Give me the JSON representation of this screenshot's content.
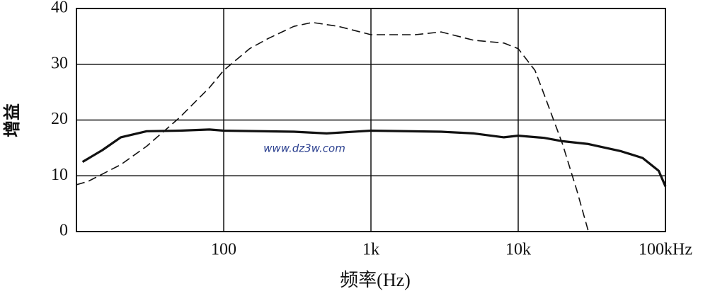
{
  "chart_data": {
    "type": "line",
    "x_label": "频率(Hz)",
    "y_label": "增益",
    "annotations": [
      "www.dz3w.com"
    ],
    "xscale": "log",
    "grid": true,
    "xlim": [
      10,
      100000
    ],
    "ylim": [
      0,
      40
    ],
    "xticks": [
      {
        "value": 100,
        "label": "100"
      },
      {
        "value": 1000,
        "label": "1k"
      },
      {
        "value": 10000,
        "label": "10k"
      },
      {
        "value": 100000,
        "label": "100kHz"
      }
    ],
    "yticks": [
      0,
      10,
      20,
      30,
      40
    ],
    "series": [
      {
        "color": "#111111",
        "line_style": "solid",
        "x": [
          11,
          15,
          20,
          30,
          50,
          80,
          100,
          300,
          500,
          1000,
          3000,
          5000,
          8000,
          10000,
          15000,
          20000,
          30000,
          50000,
          70000,
          90000,
          100000
        ],
        "values": [
          12.5,
          14.6,
          16.9,
          18,
          18.1,
          18.3,
          18.1,
          17.9,
          17.6,
          18.1,
          17.9,
          17.6,
          16.9,
          17.2,
          16.8,
          16.2,
          15.7,
          14.4,
          13.2,
          10.9,
          8.1
        ]
      },
      {
        "color": "#111111",
        "line_style": "dashed",
        "x": [
          10,
          12,
          20,
          30,
          50,
          80,
          100,
          150,
          200,
          300,
          400,
          600,
          1000,
          2000,
          3000,
          5000,
          8000,
          10000,
          13000,
          15000,
          20000,
          25000,
          30000
        ],
        "values": [
          8.4,
          9,
          12,
          15.3,
          20.4,
          25.8,
          28.9,
          32.8,
          34.6,
          36.8,
          37.5,
          36.8,
          35.3,
          35.3,
          35.8,
          34.3,
          33.8,
          32.8,
          28.9,
          24.6,
          15.7,
          7.4,
          0
        ]
      }
    ]
  }
}
